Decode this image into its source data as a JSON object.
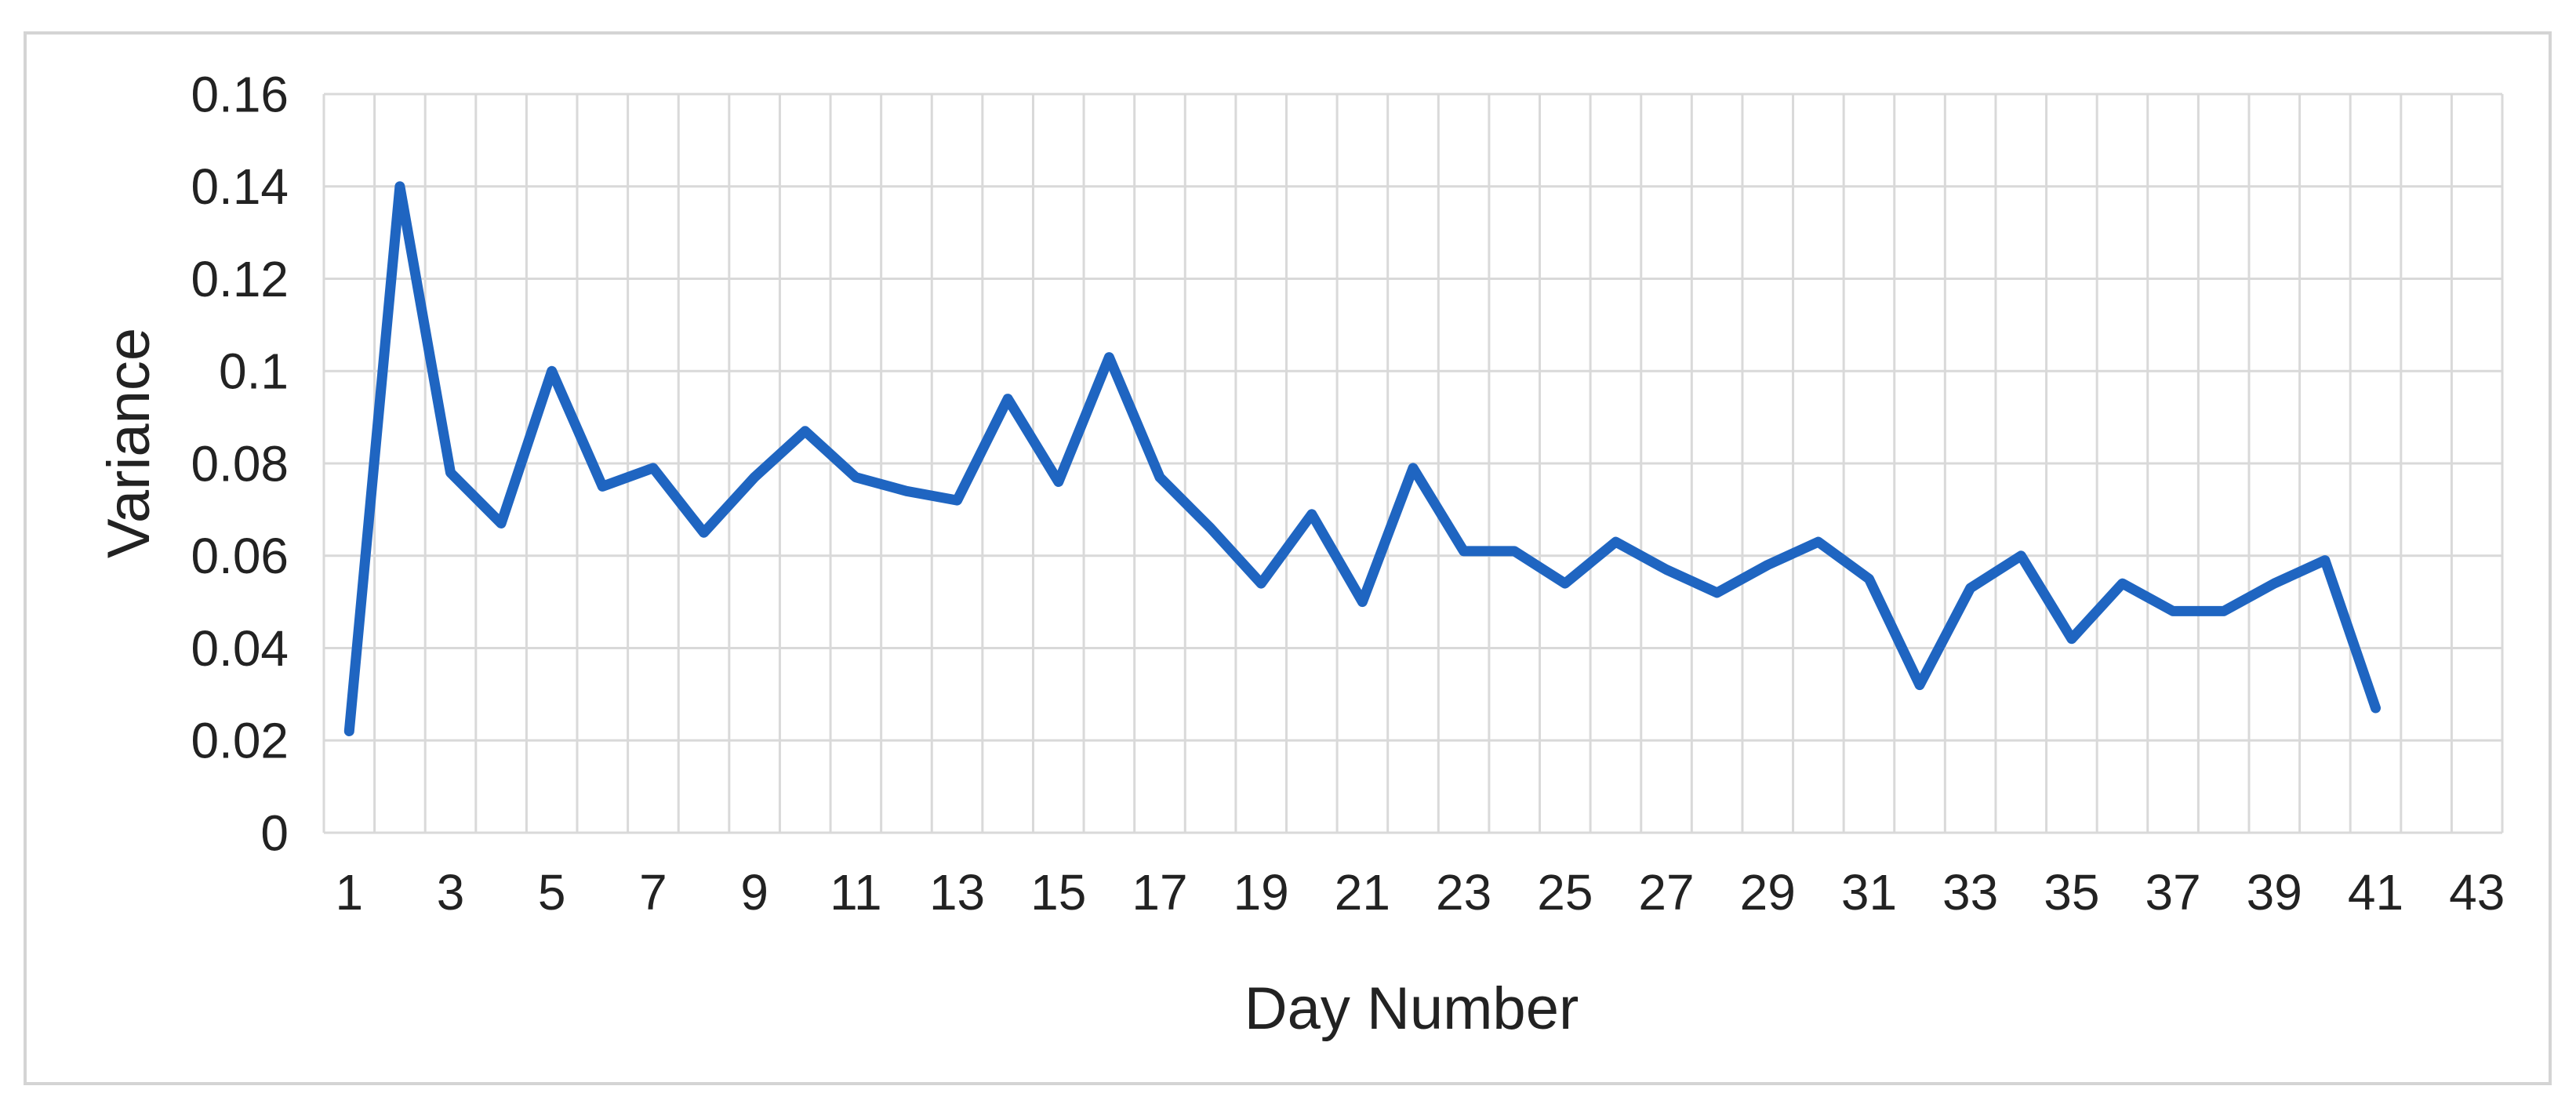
{
  "chart_data": {
    "type": "line",
    "title": "",
    "xlabel": "Day Number",
    "ylabel": "Variance",
    "x": [
      1,
      2,
      3,
      4,
      5,
      6,
      7,
      8,
      9,
      10,
      11,
      12,
      13,
      14,
      15,
      16,
      17,
      18,
      19,
      20,
      21,
      22,
      23,
      24,
      25,
      26,
      27,
      28,
      29,
      30,
      31,
      32,
      33,
      34,
      35,
      36,
      37,
      38,
      39,
      40,
      41
    ],
    "values": [
      0.022,
      0.14,
      0.078,
      0.067,
      0.1,
      0.075,
      0.079,
      0.065,
      0.077,
      0.087,
      0.077,
      0.074,
      0.072,
      0.094,
      0.076,
      0.103,
      0.077,
      0.066,
      0.054,
      0.069,
      0.05,
      0.079,
      0.061,
      0.061,
      0.054,
      0.063,
      0.057,
      0.052,
      0.058,
      0.063,
      0.055,
      0.032,
      0.053,
      0.06,
      0.042,
      0.054,
      0.048,
      0.048,
      0.054,
      0.059,
      0.027
    ],
    "ylim": [
      0,
      0.16
    ],
    "ytick_step": 0.02,
    "ytick_labels": [
      "0",
      "0.02",
      "0.04",
      "0.06",
      "0.08",
      "0.1",
      "0.12",
      "0.14",
      "0.16"
    ],
    "xtick_labels": [
      "1",
      "3",
      "5",
      "7",
      "9",
      "11",
      "13",
      "15",
      "17",
      "19",
      "21",
      "23",
      "25",
      "27",
      "29",
      "31",
      "33",
      "35",
      "37",
      "39",
      "41",
      "43"
    ],
    "x_slots": 43,
    "grid": true,
    "legend": "none",
    "line_color": "#1f65c1",
    "grid_color": "#d9d9d9",
    "plot_border_color": "#d9d9d9",
    "figure_border_color": "#d4d4d4",
    "text_color": "#222222",
    "line_width": 13
  }
}
